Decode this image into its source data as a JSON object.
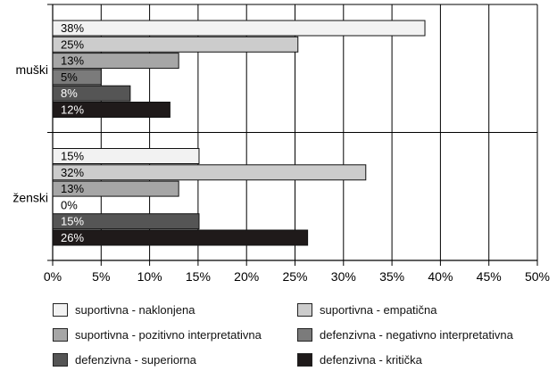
{
  "chart_data": {
    "type": "bar",
    "orientation": "horizontal",
    "categories": [
      "muški",
      "ženski"
    ],
    "series": [
      {
        "name": "suportivna - naklonjena",
        "color": "#f2f2f2",
        "labelColor": "#000000",
        "values": [
          38,
          15
        ]
      },
      {
        "name": "suportivna - empatična",
        "color": "#cccccc",
        "labelColor": "#000000",
        "values": [
          25,
          32
        ]
      },
      {
        "name": "suportivna - pozitivno interpretativna",
        "color": "#a6a6a6",
        "labelColor": "#000000",
        "values": [
          13,
          13
        ]
      },
      {
        "name": "defenzivna - negativno interpretativna",
        "color": "#7b7b7b",
        "labelColor": "#000000",
        "values": [
          5,
          0
        ]
      },
      {
        "name": "defenzivna - superiorna",
        "color": "#555555",
        "labelColor": "#ffffff",
        "values": [
          8,
          15
        ]
      },
      {
        "name": "defenzivna - kritička",
        "color": "#1f1a1a",
        "labelColor": "#ffffff",
        "values": [
          12,
          26
        ]
      }
    ],
    "bar_lengths": [
      [
        38.4,
        25.3,
        13.0,
        5.0,
        8.0,
        12.1
      ],
      [
        15.1,
        32.3,
        13.0,
        0.0,
        15.1,
        26.3
      ]
    ],
    "data_labels": [
      [
        "38%",
        "25%",
        "13%",
        "5%",
        "8%",
        "12%"
      ],
      [
        "15%",
        "32%",
        "13%",
        "0%",
        "15%",
        "26%"
      ]
    ],
    "xticks": [
      "0%",
      "5%",
      "10%",
      "15%",
      "20%",
      "25%",
      "30%",
      "35%",
      "40%",
      "45%",
      "50%"
    ],
    "xlim": [
      0,
      50
    ],
    "grid": true,
    "legend_position": "bottom"
  }
}
